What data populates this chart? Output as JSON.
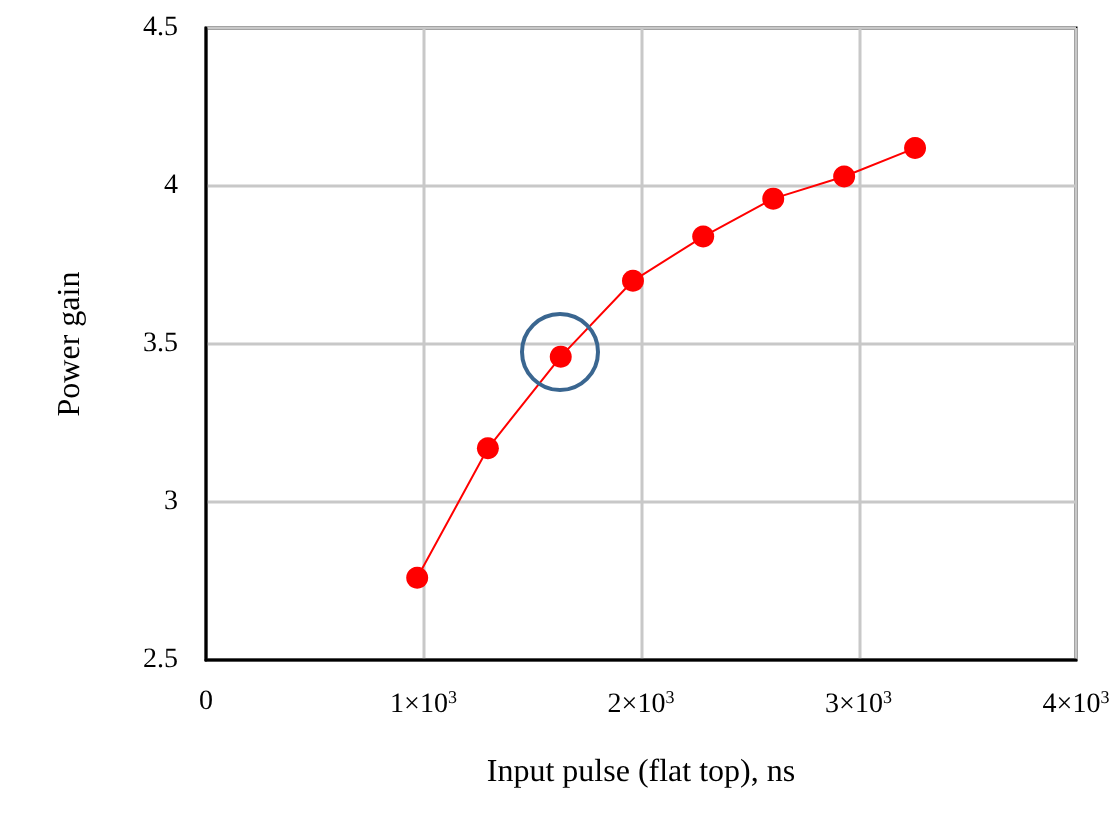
{
  "chart_data": {
    "type": "line",
    "xlabel": "Input pulse (flat top), ns",
    "ylabel": "Power gain",
    "x": [
      971,
      1296,
      1631,
      1963,
      2286,
      2608,
      2934,
      3260
    ],
    "series": [
      {
        "color": "#ff0000",
        "values": [
          2.76,
          3.17,
          3.46,
          3.7,
          3.84,
          3.96,
          4.03,
          4.12
        ]
      }
    ],
    "xlim": [
      0,
      4000
    ],
    "xticks": [
      0,
      {
        "value": 1000,
        "label": "1×10$^{3}$"
      },
      {
        "value": 2000,
        "label": "2×10$^{3}$"
      },
      {
        "value": 3000,
        "label": "3×10$^{3}$"
      },
      {
        "value": 4000,
        "label": "4×10$^{3}$"
      }
    ],
    "ylim": [
      2.5,
      4.5
    ],
    "yticks": [
      2.5,
      3,
      3.5,
      4,
      4.5
    ],
    "grid": true,
    "marker": "circle",
    "line_style": "solid"
  }
}
